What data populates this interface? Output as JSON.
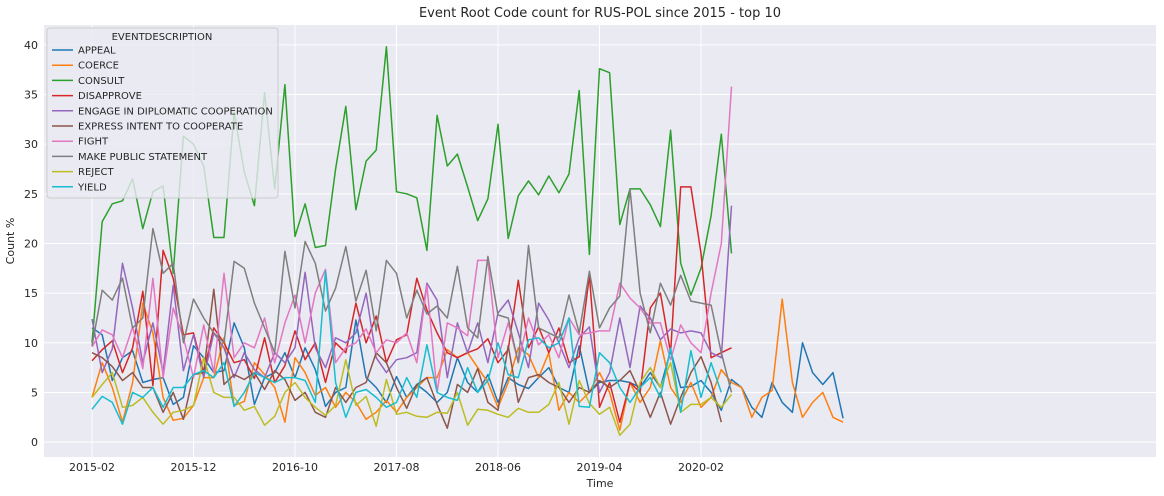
{
  "chart_data": {
    "type": "line",
    "title": "Event Root Code count for RUS-POL since 2015 - top 10",
    "xlabel": "Time",
    "ylabel": "Count %",
    "x_start": "2015-02",
    "xticks": [
      "2015-02",
      "2015-12",
      "2016-10",
      "2017-08",
      "2018-06",
      "2019-04",
      "2020-02"
    ],
    "ylim": [
      -1.5,
      42
    ],
    "yticks": [
      0,
      5,
      10,
      15,
      20,
      25,
      30,
      35,
      40
    ],
    "grid": true,
    "legend": {
      "title": "EVENTDESCRIPTION",
      "placement": "top-left"
    },
    "colors": [
      "#1f77b4",
      "#ff7f0e",
      "#2ca02c",
      "#d62728",
      "#9467bd",
      "#8c564b",
      "#e377c2",
      "#7f7f7f",
      "#bcbd22",
      "#17becf"
    ],
    "series": [
      {
        "name": "APPEAL",
        "values": [
          11.5,
          10.8,
          6.2,
          8.5,
          9.2,
          6.0,
          6.3,
          6.5,
          3.8,
          4.5,
          9.7,
          8.5,
          7.0,
          7.2,
          12.0,
          9.5,
          3.8,
          6.5,
          7.0,
          9.0,
          6.5,
          9.5,
          7.3,
          3.6,
          5.0,
          5.5,
          12.3,
          6.5,
          5.5,
          4.0,
          6.6,
          4.5,
          5.8,
          5.0,
          4.0,
          5.0,
          8.5,
          6.0,
          5.0,
          6.8,
          4.0,
          6.5,
          5.8,
          5.4,
          6.5,
          7.5,
          5.5,
          5.0,
          9.7,
          5.0,
          6.0,
          6.2,
          6.2,
          6.0,
          5.5,
          7.0,
          5.5,
          9.2,
          5.5,
          5.6,
          6.2,
          5.0,
          3.2,
          6.3,
          5.5,
          3.5,
          2.5,
          6.0,
          4.0,
          3.0,
          10.0,
          7.0,
          5.8,
          7.0,
          2.4
        ]
      },
      {
        "name": "COERCE",
        "values": [
          4.5,
          8.0,
          5.5,
          2.0,
          6.0,
          14.0,
          11.0,
          4.5,
          2.2,
          2.4,
          3.7,
          6.5,
          6.5,
          10.5,
          3.7,
          4.1,
          8.0,
          6.8,
          5.5,
          2.0,
          8.5,
          7.0,
          4.7,
          5.5,
          3.5,
          5.0,
          4.0,
          2.3,
          3.0,
          4.2,
          3.0,
          4.5,
          5.5,
          6.5,
          6.5,
          9.3,
          8.5,
          9.0,
          7.5,
          6.0,
          3.5,
          6.0,
          9.5,
          8.8,
          6.5,
          9.0,
          3.2,
          5.0,
          4.0,
          5.0,
          7.0,
          5.0,
          1.2,
          6.0,
          4.0,
          5.5,
          10.2,
          5.5,
          4.0,
          6.0,
          3.5,
          4.5,
          7.3,
          6.0,
          5.5,
          2.5,
          4.5,
          5.2,
          14.4,
          6.0,
          2.5,
          4.0,
          5.0,
          2.5,
          2.0
        ]
      },
      {
        "name": "CONSULT",
        "values": [
          10.0,
          22.2,
          24.0,
          24.3,
          26.5,
          21.5,
          25.2,
          25.8,
          17.0,
          30.8,
          30.0,
          27.8,
          20.6,
          20.6,
          33.2,
          27.2,
          23.8,
          35.2,
          25.5,
          36.0,
          20.7,
          24.0,
          19.6,
          19.8,
          27.5,
          33.8,
          23.4,
          28.3,
          29.4,
          39.8,
          25.2,
          25.0,
          24.6,
          19.3,
          32.9,
          27.8,
          29.0,
          25.7,
          22.3,
          24.5,
          32.0,
          20.5,
          24.8,
          26.3,
          24.9,
          26.8,
          25.1,
          27.0,
          35.4,
          18.9,
          37.6,
          37.2,
          21.9,
          25.5,
          25.5,
          23.9,
          21.7,
          31.4,
          18.0,
          14.8,
          17.5,
          22.8,
          31.0,
          19.0
        ]
      },
      {
        "name": "DISAPPROVE",
        "values": [
          8.2,
          9.3,
          10.2,
          7.0,
          9.5,
          15.2,
          5.7,
          19.3,
          16.5,
          10.8,
          11.0,
          7.0,
          11.5,
          10.0,
          8.0,
          8.3,
          6.4,
          10.5,
          6.0,
          7.7,
          11.2,
          8.3,
          10.0,
          6.0,
          10.0,
          9.0,
          14.0,
          10.0,
          12.7,
          8.0,
          10.3,
          10.8,
          16.5,
          13.3,
          11.0,
          9.0,
          8.5,
          9.0,
          9.4,
          10.4,
          8.0,
          9.3,
          16.3,
          9.5,
          11.6,
          9.0,
          11.5,
          8.0,
          8.6,
          16.8,
          3.5,
          6.0,
          2.0,
          6.0,
          5.0,
          13.5,
          15.0,
          9.0,
          25.7,
          25.7,
          19.0,
          8.5,
          9.0,
          9.5
        ]
      },
      {
        "name": "ENGAGE IN DIPLOMATIC COOPERATION",
        "values": [
          12.4,
          7.0,
          9.4,
          18.0,
          13.5,
          8.0,
          12.0,
          7.0,
          15.8,
          7.2,
          10.8,
          6.5,
          11.0,
          9.5,
          6.5,
          9.0,
          7.3,
          6.5,
          9.0,
          8.0,
          9.5,
          17.1,
          9.5,
          7.5,
          10.5,
          10.0,
          11.0,
          15.0,
          8.5,
          7.0,
          8.3,
          8.5,
          9.0,
          16.0,
          14.3,
          6.5,
          12.0,
          9.0,
          12.0,
          8.0,
          13.0,
          14.3,
          11.0,
          7.5,
          14.0,
          12.3,
          10.0,
          7.5,
          10.5,
          11.6,
          5.0,
          7.0,
          12.5,
          7.5,
          13.7,
          12.5,
          10.3,
          11.4,
          11.0,
          11.2,
          11.0,
          9.0,
          8.5,
          23.8
        ]
      },
      {
        "name": "EXPRESS INTENT TO COOPERATE",
        "values": [
          9.0,
          8.5,
          7.6,
          6.2,
          7.0,
          5.5,
          5.5,
          3.0,
          5.0,
          2.3,
          6.8,
          7.0,
          15.4,
          5.8,
          6.8,
          6.3,
          7.0,
          5.3,
          7.2,
          6.3,
          4.2,
          5.0,
          3.0,
          2.5,
          5.5,
          4.0,
          5.5,
          6.0,
          9.0,
          8.0,
          5.5,
          3.4,
          5.8,
          6.5,
          3.8,
          1.4,
          5.8,
          5.0,
          7.4,
          4.0,
          3.2,
          9.7,
          4.0,
          6.5,
          6.8,
          6.0,
          5.5,
          4.0,
          5.5,
          5.0,
          6.2,
          5.5,
          6.2,
          7.2,
          5.0,
          2.5,
          5.0,
          1.8,
          4.5,
          7.0,
          8.6,
          6.0,
          2.0
        ]
      },
      {
        "name": "FIGHT",
        "values": [
          9.6,
          11.3,
          10.8,
          8.5,
          11.6,
          7.4,
          16.5,
          6.5,
          13.5,
          10.5,
          6.5,
          11.8,
          7.0,
          17.0,
          8.5,
          10.0,
          9.5,
          12.5,
          8.0,
          12.0,
          14.8,
          10.0,
          15.0,
          17.4,
          8.0,
          9.5,
          10.0,
          11.4,
          9.0,
          10.3,
          10.0,
          11.0,
          8.0,
          15.8,
          5.0,
          12.0,
          11.5,
          10.7,
          18.3,
          18.3,
          8.5,
          12.0,
          8.0,
          12.5,
          9.8,
          10.8,
          8.5,
          12.5,
          10.8,
          11.0,
          11.2,
          11.2,
          16.0,
          14.5,
          13.5,
          12.0,
          12.0,
          8.3,
          11.8,
          10.0,
          9.0,
          15.0,
          20.0,
          35.8
        ]
      },
      {
        "name": "MAKE PUBLIC STATEMENT",
        "values": [
          9.7,
          15.3,
          14.3,
          16.5,
          11.5,
          12.5,
          21.5,
          17.0,
          18.0,
          10.0,
          14.4,
          12.5,
          11.0,
          10.0,
          18.2,
          17.5,
          14.0,
          11.5,
          9.0,
          19.2,
          13.5,
          20.2,
          18.0,
          13.2,
          15.5,
          19.7,
          14.2,
          17.3,
          11.2,
          18.3,
          17.0,
          12.5,
          15.3,
          12.9,
          13.7,
          12.5,
          17.7,
          11.5,
          10.5,
          18.7,
          12.8,
          12.5,
          8.0,
          19.8,
          11.5,
          11.0,
          10.5,
          14.8,
          11.0,
          17.2,
          11.5,
          13.5,
          14.7,
          25.5,
          15.0,
          11.0,
          16.0,
          13.8,
          16.8,
          14.2,
          14.0,
          13.8,
          9.0,
          5.0
        ]
      },
      {
        "name": "REJECT",
        "values": [
          4.5,
          5.8,
          7.0,
          3.5,
          3.7,
          4.5,
          3.0,
          1.8,
          3.0,
          3.2,
          3.7,
          8.5,
          5.0,
          4.5,
          4.5,
          3.2,
          3.6,
          1.7,
          2.6,
          5.0,
          6.0,
          4.5,
          3.5,
          2.7,
          3.7,
          8.3,
          3.7,
          4.6,
          1.6,
          6.3,
          2.8,
          3.0,
          2.6,
          2.5,
          3.0,
          2.9,
          5.0,
          1.7,
          3.3,
          3.2,
          2.8,
          2.5,
          3.4,
          3.0,
          3.0,
          3.8,
          6.0,
          1.8,
          6.2,
          3.9,
          2.8,
          3.5,
          0.7,
          1.8,
          6.0,
          7.5,
          5.5,
          8.0,
          3.0,
          3.8,
          3.8,
          4.5,
          3.5,
          4.8
        ]
      },
      {
        "name": "YIELD",
        "values": [
          3.3,
          4.6,
          4.0,
          1.8,
          5.0,
          4.5,
          5.5,
          3.5,
          5.5,
          5.5,
          6.8,
          7.2,
          6.5,
          8.0,
          3.6,
          5.0,
          7.0,
          6.5,
          6.0,
          6.5,
          6.5,
          6.2,
          4.0,
          17.2,
          6.0,
          2.5,
          5.0,
          5.3,
          4.5,
          3.5,
          4.0,
          6.5,
          4.5,
          9.8,
          5.0,
          4.5,
          4.2,
          7.5,
          5.0,
          6.2,
          10.0,
          6.8,
          6.5,
          10.3,
          10.5,
          9.5,
          10.0,
          12.5,
          3.6,
          3.5,
          9.0,
          8.0,
          5.5,
          4.0,
          5.5,
          6.5,
          4.5,
          9.5,
          3.0,
          9.2,
          4.5,
          8.0,
          5.0
        ]
      }
    ]
  }
}
